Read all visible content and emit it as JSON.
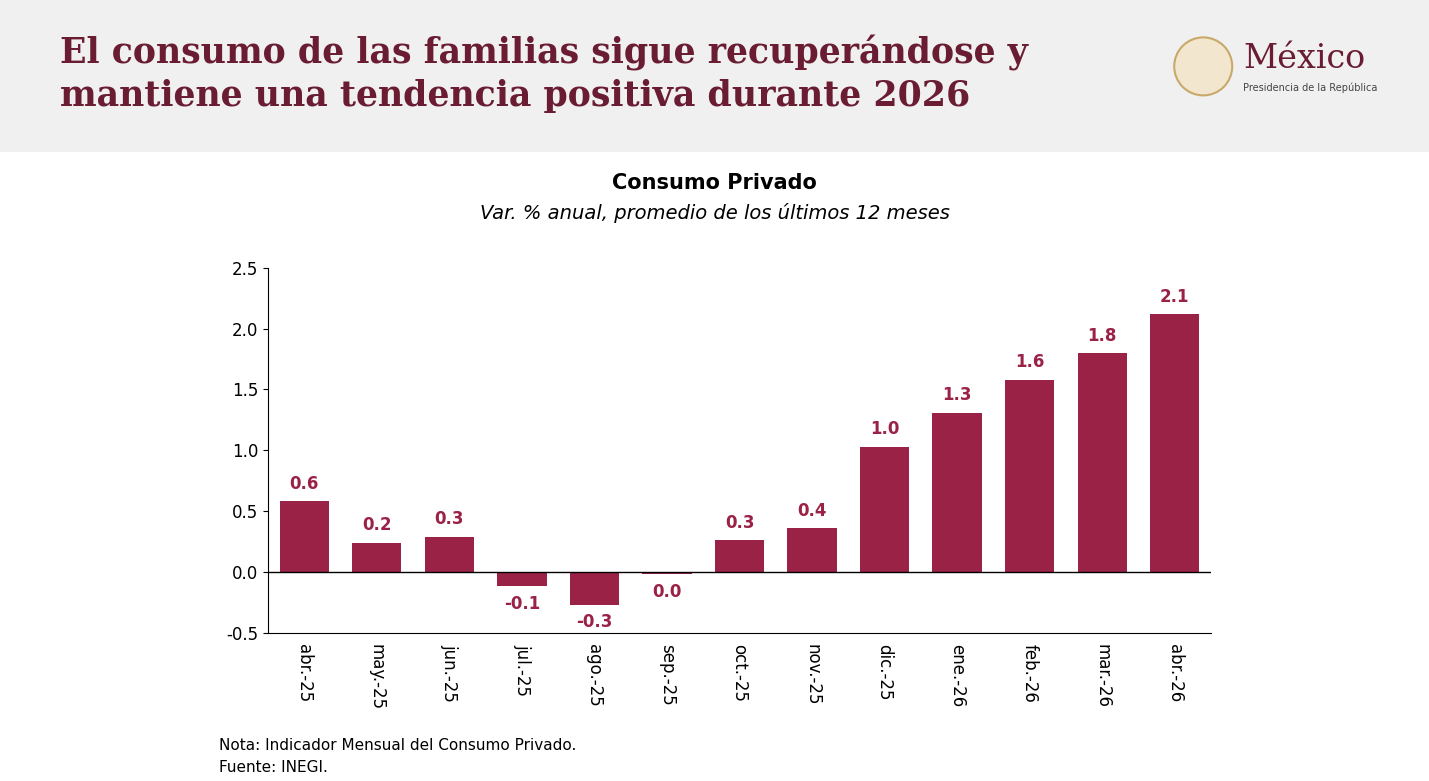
{
  "header": {
    "title": "El consumo de las familias sigue recuperándose y mantiene una tendencia positiva durante 2026",
    "logo": {
      "name": "México",
      "subtitle": "Presidencia de la República"
    }
  },
  "chart_data": {
    "type": "bar",
    "title": "Consumo Privado",
    "subtitle": "Var. % anual, promedio de los últimos 12 meses",
    "categories": [
      "abr.-25",
      "may.-25",
      "jun.-25",
      "jul.-25",
      "ago.-25",
      "sep.-25",
      "oct.-25",
      "nov.-25",
      "dic.-25",
      "ene.-26",
      "feb.-26",
      "mar.-26",
      "abr.-26"
    ],
    "values": [
      0.58,
      0.24,
      0.29,
      -0.12,
      -0.27,
      -0.02,
      0.26,
      0.36,
      1.03,
      1.31,
      1.58,
      1.8,
      2.12
    ],
    "value_labels": [
      "0.6",
      "0.2",
      "0.3",
      "-0.1",
      "-0.3",
      "0.0",
      "0.3",
      "0.4",
      "1.0",
      "1.3",
      "1.6",
      "1.8",
      "2.1"
    ],
    "color": "#9b2247",
    "data_labels": true,
    "grid": false,
    "ylim": [
      -0.5,
      2.5
    ],
    "yticks": [
      -0.5,
      {
        "value": 0.0,
        "label": "0.0"
      },
      0.5,
      {
        "value": 1.0,
        "label": "1.0"
      },
      1.5,
      {
        "value": 2.0,
        "label": "2.0"
      },
      2.5
    ]
  },
  "footer": {
    "note": "Nota: Indicador Mensual del Consumo Privado.",
    "source": "Fuente: INEGI."
  }
}
